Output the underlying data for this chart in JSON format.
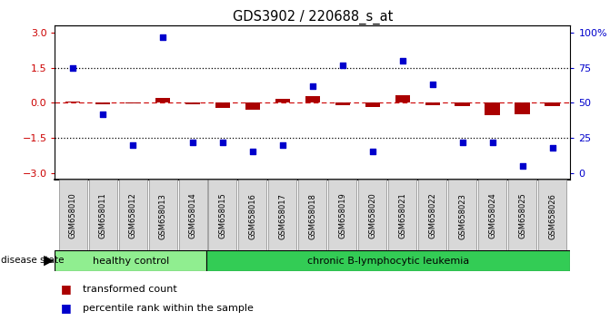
{
  "title": "GDS3902 / 220688_s_at",
  "samples": [
    "GSM658010",
    "GSM658011",
    "GSM658012",
    "GSM658013",
    "GSM658014",
    "GSM658015",
    "GSM658016",
    "GSM658017",
    "GSM658018",
    "GSM658019",
    "GSM658020",
    "GSM658021",
    "GSM658022",
    "GSM658023",
    "GSM658024",
    "GSM658025",
    "GSM658026"
  ],
  "transformed_count": [
    0.05,
    -0.05,
    -0.04,
    0.22,
    -0.05,
    -0.22,
    -0.3,
    0.18,
    0.28,
    -0.12,
    -0.2,
    0.32,
    -0.12,
    -0.14,
    -0.52,
    -0.48,
    -0.14
  ],
  "percentile_rank_pct": [
    75,
    42,
    20,
    97,
    22,
    22,
    15,
    20,
    62,
    77,
    15,
    80,
    63,
    22,
    22,
    5,
    18
  ],
  "healthy_control_count": 5,
  "disease_label": "chronic B-lymphocytic leukemia",
  "healthy_label": "healthy control",
  "disease_state_label": "disease state",
  "left_yticks": [
    -3,
    -1.5,
    0,
    1.5,
    3
  ],
  "right_ytick_pct": [
    0,
    25,
    50,
    75,
    100
  ],
  "ylim_left": [
    -3.3,
    3.3
  ],
  "bar_color": "#aa0000",
  "scatter_color": "#0000cc",
  "black_dotted_color": "#000000",
  "red_dotted_color": "#cc0000",
  "healthy_bg": "#90ee90",
  "disease_bg": "#33cc55",
  "legend_bar_label": "transformed count",
  "legend_scatter_label": "percentile rank within the sample"
}
